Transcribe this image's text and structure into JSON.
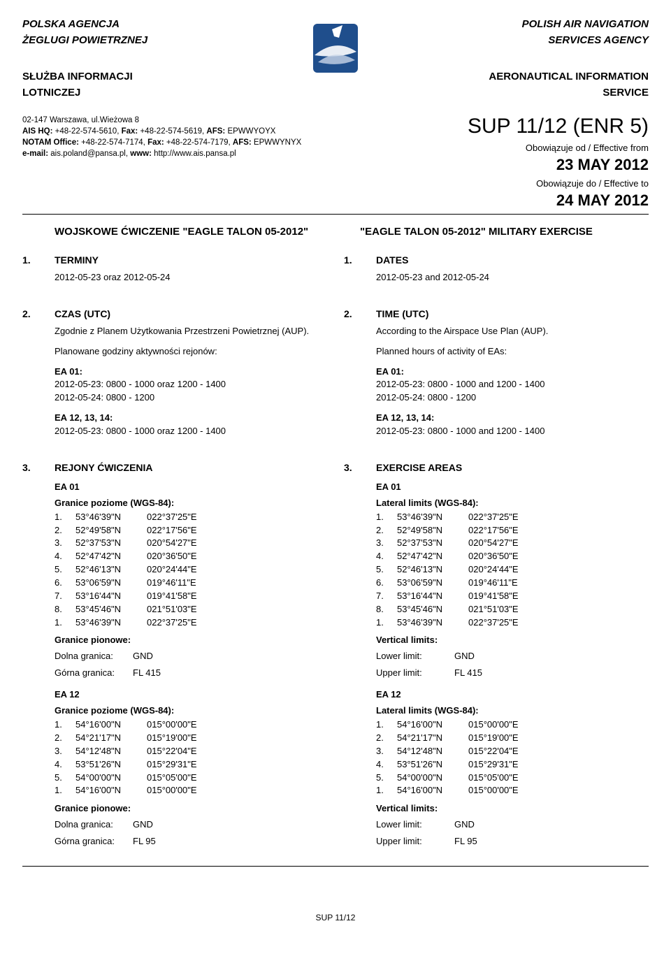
{
  "header": {
    "pl_agency_line1": "POLSKA AGENCJA",
    "pl_agency_line2": "ŻEGLUGI POWIETRZNEJ",
    "pl_service_line1": "SŁUŻBA INFORMACJI",
    "pl_service_line2": "LOTNICZEJ",
    "en_agency_line1": "POLISH AIR NAVIGATION",
    "en_agency_line2": "SERVICES AGENCY",
    "en_service_line1": "AERONAUTICAL INFORMATION",
    "en_service_line2": "SERVICE"
  },
  "contact": {
    "address": "02-147 Warszawa, ul.Wieżowa 8",
    "ais_hq_label": "AIS HQ:",
    "ais_hq_phone": " +48-22-574-5610, ",
    "fax_label": "Fax:",
    "ais_hq_fax": " +48-22-574-5619, ",
    "afs_label": "AFS:",
    "ais_hq_afs": " EPWWYOYX",
    "notam_label": "NOTAM Office:",
    "notam_phone": " +48-22-574-7174, ",
    "notam_fax": " +48-22-574-7179, ",
    "notam_afs": " EPWWYNYX",
    "email_label": "e-mail:",
    "email": " ais.poland@pansa.pl, ",
    "www_label": "www:",
    "www": " http://www.ais.pansa.pl"
  },
  "sup": {
    "title": "SUP 11/12 (ENR 5)",
    "effective_from_label": "Obowiązuje od / Effective from",
    "effective_from": "23 MAY 2012",
    "effective_to_label": "Obowiązuje do / Effective to",
    "effective_to": "24 MAY 2012"
  },
  "doc_title": {
    "pl": "WOJSKOWE ĆWICZENIE \"EAGLE TALON 05-2012\"",
    "en": "\"EAGLE TALON 05-2012\" MILITARY EXERCISE"
  },
  "s1": {
    "num": "1.",
    "pl_heading": "TERMINY",
    "en_heading": "DATES",
    "pl_text": "2012-05-23 oraz 2012-05-24",
    "en_text": "2012-05-23 and 2012-05-24"
  },
  "s2": {
    "num": "2.",
    "pl_heading": "CZAS (UTC)",
    "en_heading": "TIME (UTC)",
    "pl_p1": "Zgodnie z Planem Użytkowania Przestrzeni Powietrznej (AUP).",
    "en_p1": "According to the Airspace Use Plan (AUP).",
    "pl_p2": "Planowane godziny aktywności rejonów:",
    "en_p2": "Planned hours of activity of EAs:",
    "ea01_label": "EA 01:",
    "pl_ea01_l1": "2012-05-23: 0800 - 1000 oraz 1200 - 1400",
    "en_ea01_l1": "2012-05-23: 0800 - 1000 and 1200 - 1400",
    "ea01_l2": "2012-05-24: 0800 - 1200",
    "ea12_label": "EA 12, 13, 14:",
    "pl_ea12_l1": "2012-05-23: 0800 - 1000 oraz 1200 - 1400",
    "en_ea12_l1": "2012-05-23: 0800 - 1000 and 1200 - 1400"
  },
  "s3": {
    "num": "3.",
    "pl_heading": "REJONY ĆWICZENIA",
    "en_heading": "EXERCISE AREAS",
    "ea01_name": "EA 01",
    "pl_lateral": "Granice poziome (WGS-84):",
    "en_lateral": "Lateral limits (WGS-84):",
    "ea01_coords": [
      {
        "n": "1.",
        "lat": "53°46'39\"N",
        "lon": "022°37'25\"E"
      },
      {
        "n": "2.",
        "lat": "52°49'58\"N",
        "lon": "022°17'56\"E"
      },
      {
        "n": "3.",
        "lat": "52°37'53\"N",
        "lon": "020°54'27\"E"
      },
      {
        "n": "4.",
        "lat": "52°47'42\"N",
        "lon": "020°36'50\"E"
      },
      {
        "n": "5.",
        "lat": "52°46'13\"N",
        "lon": "020°24'44\"E"
      },
      {
        "n": "6.",
        "lat": "53°06'59\"N",
        "lon": "019°46'11\"E"
      },
      {
        "n": "7.",
        "lat": "53°16'44\"N",
        "lon": "019°41'58\"E"
      },
      {
        "n": "8.",
        "lat": "53°45'46\"N",
        "lon": "021°51'03\"E"
      },
      {
        "n": "1.",
        "lat": "53°46'39\"N",
        "lon": "022°37'25\"E"
      }
    ],
    "pl_vertical": "Granice pionowe:",
    "en_vertical": "Vertical limits:",
    "pl_lower": "Dolna granica:",
    "en_lower": "Lower limit:",
    "pl_upper": "Górna granica:",
    "en_upper": "Upper limit:",
    "ea01_lower": "GND",
    "ea01_upper": "FL 415",
    "ea12_name": "EA 12",
    "ea12_coords": [
      {
        "n": "1.",
        "lat": "54°16'00\"N",
        "lon": "015°00'00\"E"
      },
      {
        "n": "2.",
        "lat": "54°21'17\"N",
        "lon": "015°19'00\"E"
      },
      {
        "n": "3.",
        "lat": "54°12'48\"N",
        "lon": "015°22'04\"E"
      },
      {
        "n": "4.",
        "lat": "53°51'26\"N",
        "lon": "015°29'31\"E"
      },
      {
        "n": "5.",
        "lat": "54°00'00\"N",
        "lon": "015°05'00\"E"
      },
      {
        "n": "1.",
        "lat": "54°16'00\"N",
        "lon": "015°00'00\"E"
      }
    ],
    "ea12_lower": "GND",
    "ea12_upper": "FL 95"
  },
  "footer": "SUP 11/12",
  "logo_colors": {
    "bg": "#1f4e8c",
    "swoosh": "#ffffff",
    "accent": "#c0c0c0"
  }
}
